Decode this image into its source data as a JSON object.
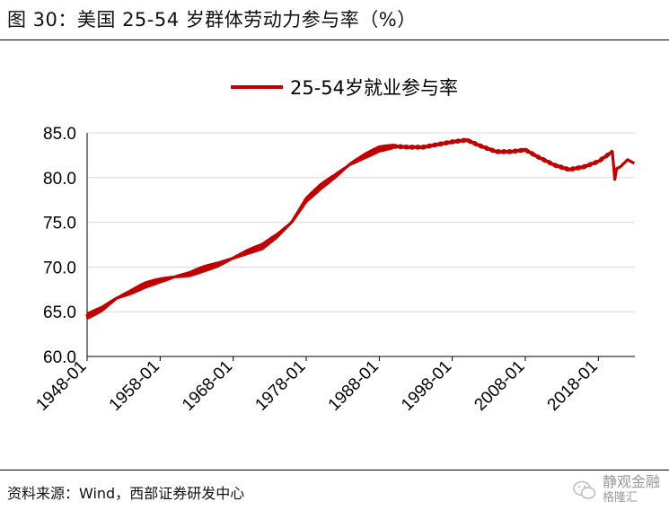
{
  "figure": {
    "title": "图 30：美国 25-54 岁群体劳动力参与率（%）",
    "source": "资料来源：Wind，西部证券研发中心",
    "watermark": "静观金融",
    "watermark_sub": "格隆汇"
  },
  "colors": {
    "series": "#c00000",
    "grid": "#d9d9d9",
    "axis": "#000000"
  },
  "chart_data": {
    "type": "line",
    "title": "",
    "xlabel": "",
    "ylabel": "",
    "ylim": [
      60,
      85
    ],
    "yticks": [
      "60.0",
      "65.0",
      "70.0",
      "75.0",
      "80.0",
      "85.0"
    ],
    "xticks": [
      "1948-01",
      "1958-01",
      "1968-01",
      "1978-01",
      "1988-01",
      "1998-01",
      "2008-01",
      "2018-01"
    ],
    "grid": "horizontal",
    "legend": "top-center",
    "series": [
      {
        "name": "25-54岁就业参与率",
        "x": [
          "1948-01",
          "1950-01",
          "1952-01",
          "1954-01",
          "1956-01",
          "1958-01",
          "1960-01",
          "1962-01",
          "1964-01",
          "1966-01",
          "1968-01",
          "1970-01",
          "1972-01",
          "1974-01",
          "1976-01",
          "1978-01",
          "1980-01",
          "1982-01",
          "1984-01",
          "1986-01",
          "1988-01",
          "1990-01",
          "1992-01",
          "1994-01",
          "1996-01",
          "1998-01",
          "2000-01",
          "2002-01",
          "2004-01",
          "2006-01",
          "2008-01",
          "2010-01",
          "2012-01",
          "2014-01",
          "2016-01",
          "2018-01",
          "2019-12",
          "2020-04",
          "2020-07",
          "2021-01",
          "2022-01",
          "2022-12"
        ],
        "values": [
          64.5,
          65.3,
          66.5,
          67.2,
          68.0,
          68.5,
          68.9,
          69.2,
          69.8,
          70.3,
          71.0,
          71.7,
          72.3,
          73.5,
          75.0,
          77.5,
          79.0,
          80.2,
          81.5,
          82.4,
          83.2,
          83.5,
          83.4,
          83.4,
          83.7,
          84.0,
          84.2,
          83.5,
          82.9,
          82.9,
          83.1,
          82.2,
          81.4,
          80.9,
          81.2,
          81.8,
          82.9,
          79.8,
          81.0,
          81.2,
          82.0,
          81.6
        ]
      }
    ]
  }
}
